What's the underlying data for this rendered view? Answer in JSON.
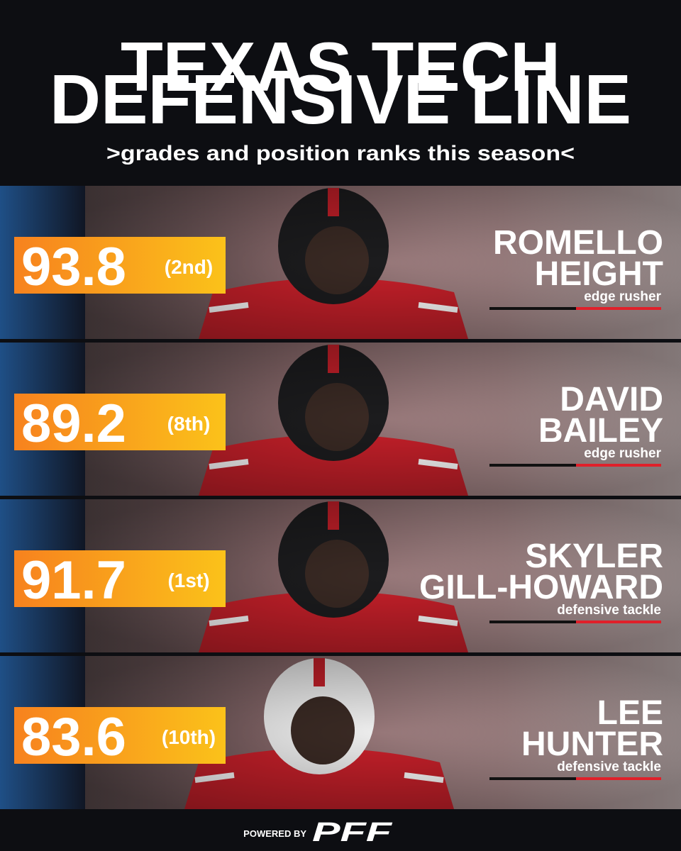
{
  "header": {
    "title_lines": [
      "TEXAS TECH",
      "DEFENSIVE LINE"
    ],
    "subtitle": ">grades and position ranks this season<"
  },
  "players": [
    {
      "grade": 93.8,
      "rank": "(2nd)",
      "name_lines": [
        "ROMELLO",
        "HEIGHT"
      ],
      "position": "edge rusher"
    },
    {
      "grade": 89.2,
      "rank": "(8th)",
      "name_lines": [
        "DAVID",
        "BAILEY"
      ],
      "position": "edge rusher"
    },
    {
      "grade": 91.7,
      "rank": "(1st)",
      "name_lines": [
        "SKYLER",
        "GILL-HOWARD"
      ],
      "position": "defensive tackle"
    },
    {
      "grade": 83.6,
      "rank": "(10th)",
      "name_lines": [
        "LEE",
        "HUNTER"
      ],
      "position": "defensive tackle"
    }
  ],
  "footer": {
    "prefix": "POWERED BY",
    "brand": "PFF"
  }
}
